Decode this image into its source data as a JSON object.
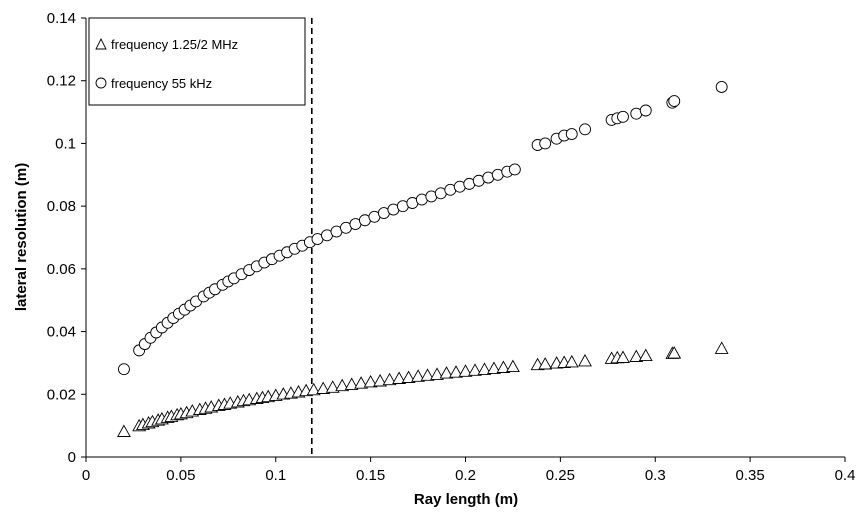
{
  "chart_data": {
    "type": "scatter",
    "xlabel": "Ray length (m)",
    "ylabel": "lateral resolution (m)",
    "xlim": [
      0,
      0.4
    ],
    "ylim": [
      0,
      0.14
    ],
    "x_ticks": [
      "0",
      "0.05",
      "0.1",
      "0.15",
      "0.2",
      "0.25",
      "0.3",
      "0.35",
      "0.4"
    ],
    "y_ticks": [
      "0",
      "0.02",
      "0.04",
      "0.06",
      "0.08",
      "0.1",
      "0.12",
      "0.14"
    ],
    "grid": false,
    "legend_position": "top-left",
    "reference_line": {
      "x": 0.119,
      "style": "dashed"
    },
    "series": [
      {
        "name": "frequency 1.25/2 MHz",
        "marker": "triangle",
        "color": "#000000",
        "points": [
          [
            0.02,
            0.008
          ],
          [
            0.028,
            0.0098
          ],
          [
            0.03,
            0.0102
          ],
          [
            0.033,
            0.0107
          ],
          [
            0.035,
            0.0111
          ],
          [
            0.038,
            0.0116
          ],
          [
            0.04,
            0.012
          ],
          [
            0.043,
            0.0125
          ],
          [
            0.045,
            0.0128
          ],
          [
            0.048,
            0.0133
          ],
          [
            0.05,
            0.0136
          ],
          [
            0.053,
            0.014
          ],
          [
            0.056,
            0.0145
          ],
          [
            0.06,
            0.015
          ],
          [
            0.063,
            0.0154
          ],
          [
            0.066,
            0.0158
          ],
          [
            0.07,
            0.0163
          ],
          [
            0.073,
            0.0166
          ],
          [
            0.076,
            0.017
          ],
          [
            0.08,
            0.0174
          ],
          [
            0.083,
            0.0178
          ],
          [
            0.086,
            0.0181
          ],
          [
            0.09,
            0.0185
          ],
          [
            0.093,
            0.0188
          ],
          [
            0.096,
            0.0191
          ],
          [
            0.1,
            0.0195
          ],
          [
            0.104,
            0.0199
          ],
          [
            0.108,
            0.0202
          ],
          [
            0.112,
            0.0206
          ],
          [
            0.116,
            0.021
          ],
          [
            0.12,
            0.0213
          ],
          [
            0.125,
            0.0217
          ],
          [
            0.13,
            0.0221
          ],
          [
            0.135,
            0.0226
          ],
          [
            0.14,
            0.023
          ],
          [
            0.145,
            0.0234
          ],
          [
            0.15,
            0.0238
          ],
          [
            0.155,
            0.0241
          ],
          [
            0.16,
            0.0245
          ],
          [
            0.165,
            0.0249
          ],
          [
            0.17,
            0.0252
          ],
          [
            0.175,
            0.0256
          ],
          [
            0.18,
            0.0259
          ],
          [
            0.185,
            0.0262
          ],
          [
            0.19,
            0.0266
          ],
          [
            0.195,
            0.0269
          ],
          [
            0.2,
            0.0272
          ],
          [
            0.205,
            0.0275
          ],
          [
            0.21,
            0.0278
          ],
          [
            0.215,
            0.0281
          ],
          [
            0.22,
            0.0284
          ],
          [
            0.225,
            0.0287
          ],
          [
            0.238,
            0.0293
          ],
          [
            0.242,
            0.0295
          ],
          [
            0.248,
            0.0298
          ],
          [
            0.252,
            0.03
          ],
          [
            0.256,
            0.0302
          ],
          [
            0.263,
            0.0305
          ],
          [
            0.277,
            0.0313
          ],
          [
            0.28,
            0.0315
          ],
          [
            0.283,
            0.0316
          ],
          [
            0.29,
            0.0319
          ],
          [
            0.295,
            0.0322
          ],
          [
            0.309,
            0.0329
          ],
          [
            0.31,
            0.033
          ],
          [
            0.335,
            0.0345
          ]
        ]
      },
      {
        "name": "frequency 55 kHz",
        "marker": "circle",
        "color": "#000000",
        "points": [
          [
            0.02,
            0.028
          ],
          [
            0.028,
            0.034
          ],
          [
            0.031,
            0.036
          ],
          [
            0.034,
            0.038
          ],
          [
            0.037,
            0.0397
          ],
          [
            0.04,
            0.0413
          ],
          [
            0.043,
            0.0428
          ],
          [
            0.046,
            0.0443
          ],
          [
            0.049,
            0.0457
          ],
          [
            0.052,
            0.047
          ],
          [
            0.055,
            0.0483
          ],
          [
            0.058,
            0.0496
          ],
          [
            0.062,
            0.0512
          ],
          [
            0.065,
            0.0524
          ],
          [
            0.068,
            0.0535
          ],
          [
            0.072,
            0.0549
          ],
          [
            0.075,
            0.056
          ],
          [
            0.078,
            0.057
          ],
          [
            0.082,
            0.0583
          ],
          [
            0.086,
            0.0596
          ],
          [
            0.09,
            0.0608
          ],
          [
            0.094,
            0.062
          ],
          [
            0.098,
            0.0631
          ],
          [
            0.102,
            0.0642
          ],
          [
            0.106,
            0.0653
          ],
          [
            0.11,
            0.0664
          ],
          [
            0.114,
            0.0674
          ],
          [
            0.118,
            0.0685
          ],
          [
            0.122,
            0.0695
          ],
          [
            0.127,
            0.0707
          ],
          [
            0.132,
            0.0719
          ],
          [
            0.137,
            0.0731
          ],
          [
            0.142,
            0.0743
          ],
          [
            0.147,
            0.0755
          ],
          [
            0.152,
            0.0766
          ],
          [
            0.157,
            0.0778
          ],
          [
            0.162,
            0.0789
          ],
          [
            0.167,
            0.08
          ],
          [
            0.172,
            0.081
          ],
          [
            0.177,
            0.0821
          ],
          [
            0.182,
            0.0831
          ],
          [
            0.187,
            0.0841
          ],
          [
            0.192,
            0.0852
          ],
          [
            0.197,
            0.0862
          ],
          [
            0.202,
            0.0871
          ],
          [
            0.207,
            0.0881
          ],
          [
            0.212,
            0.0891
          ],
          [
            0.217,
            0.09
          ],
          [
            0.222,
            0.091
          ],
          [
            0.226,
            0.0917
          ],
          [
            0.238,
            0.0995
          ],
          [
            0.242,
            0.1
          ],
          [
            0.248,
            0.1015
          ],
          [
            0.252,
            0.1025
          ],
          [
            0.256,
            0.103
          ],
          [
            0.263,
            0.1045
          ],
          [
            0.277,
            0.1075
          ],
          [
            0.28,
            0.108
          ],
          [
            0.283,
            0.1085
          ],
          [
            0.29,
            0.1095
          ],
          [
            0.295,
            0.1105
          ],
          [
            0.309,
            0.113
          ],
          [
            0.31,
            0.1135
          ],
          [
            0.335,
            0.118
          ]
        ]
      }
    ]
  }
}
